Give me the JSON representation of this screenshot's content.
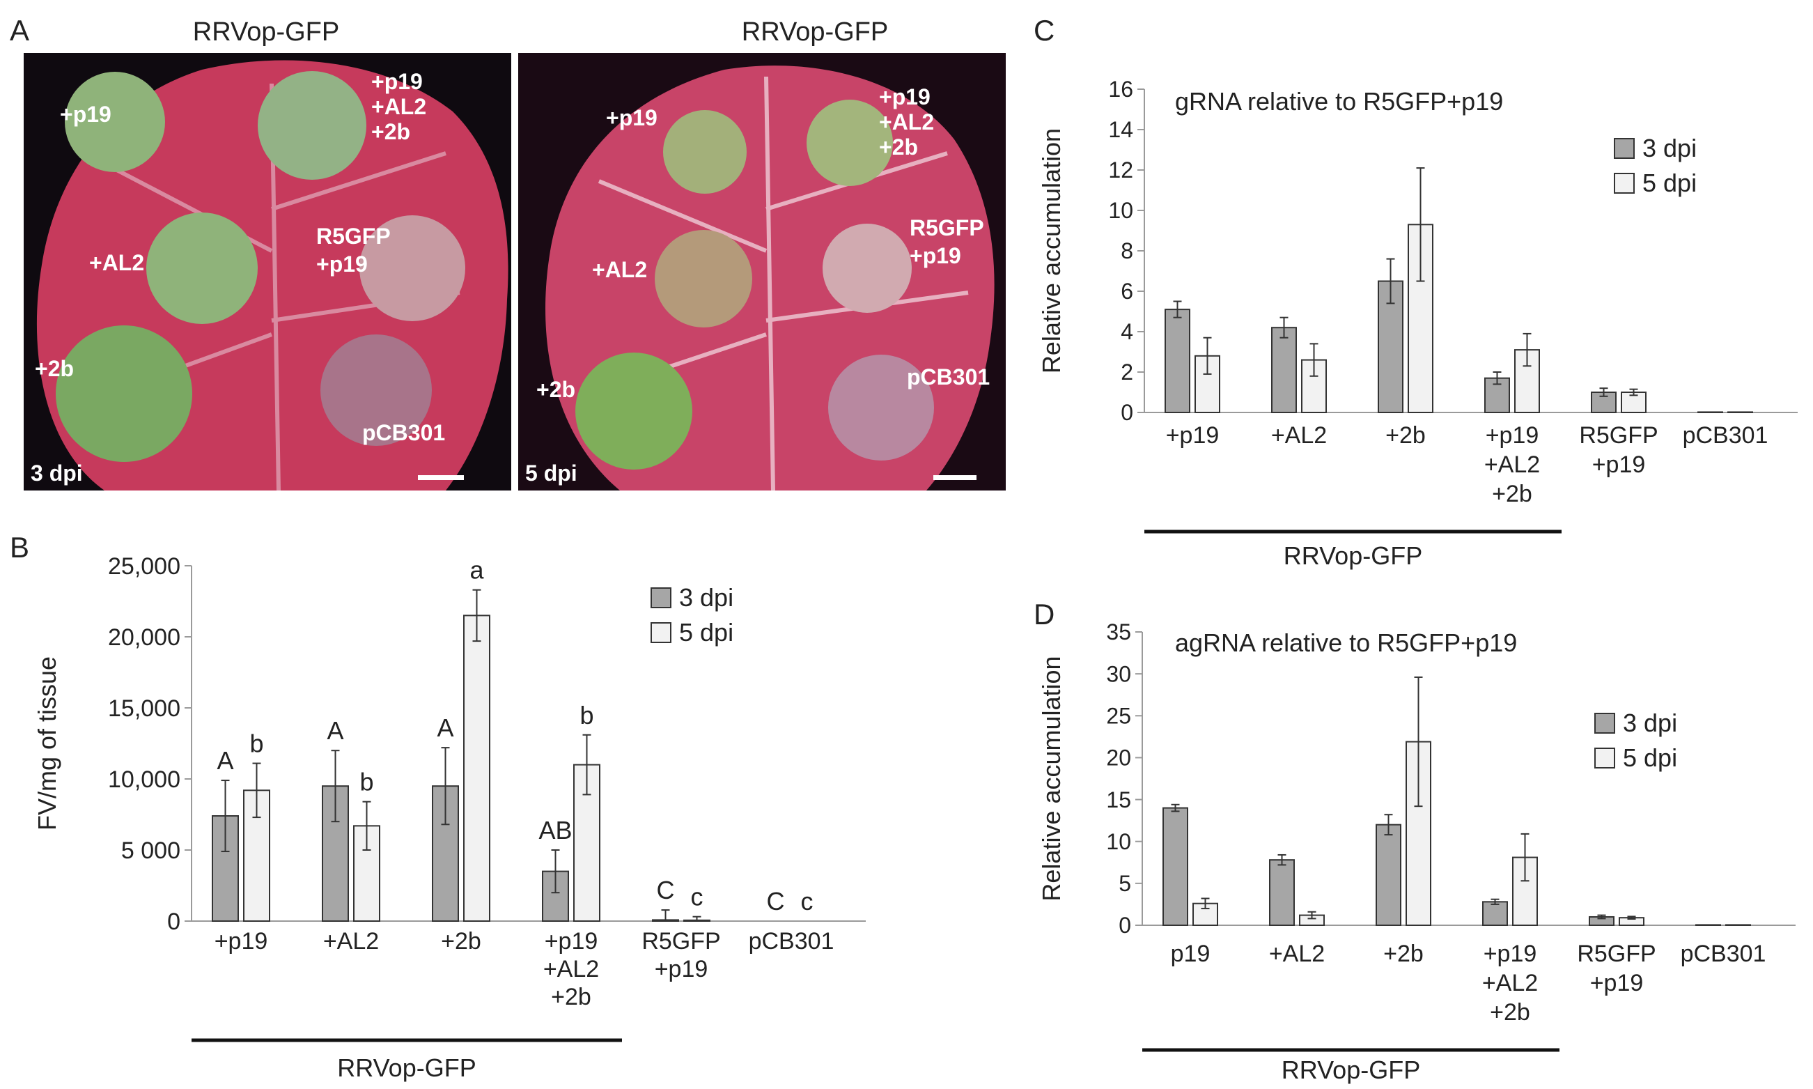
{
  "panels": {
    "a": "A",
    "b": "B",
    "c": "C",
    "d": "D"
  },
  "photos": {
    "left": {
      "title": "RRVop-GFP",
      "day": "3 dpi",
      "labels": [
        "+p19",
        "+p19\n+AL2\n+2b",
        "+AL2",
        "R5GFP\n+p19",
        "+2b",
        "pCB301"
      ]
    },
    "right": {
      "title": "RRVop-GFP",
      "day": "5 dpi",
      "labels": [
        "+p19",
        "+p19\n+AL2\n+2b",
        "+AL2",
        "R5GFP\n+p19",
        "+2b",
        "pCB301"
      ]
    }
  },
  "colors": {
    "dark_bar": "#a6a6a6",
    "light_bar": "#f2f2f2",
    "leaf": "#c83a5a",
    "background": "#0f0a10",
    "spot": "#8fb37a"
  },
  "chart_data": [
    {
      "panel": "B",
      "type": "bar",
      "categories": [
        "+p19",
        "+AL2",
        "+2b",
        "+p19\n+AL2\n+2b",
        "R5GFP\n+p19",
        "pCB301"
      ],
      "series": [
        {
          "name": "3 dpi",
          "values": [
            7400,
            9500,
            9500,
            3500,
            80,
            0
          ],
          "errors": [
            2500,
            2500,
            2700,
            1500,
            700,
            0
          ],
          "letters": [
            "A",
            "A",
            "A",
            "AB",
            "C",
            "C"
          ]
        },
        {
          "name": "5 dpi",
          "values": [
            9200,
            6700,
            21500,
            11000,
            60,
            0
          ],
          "errors": [
            1900,
            1700,
            1800,
            2100,
            250,
            0
          ],
          "letters": [
            "b",
            "b",
            "a",
            "b",
            "c",
            "c"
          ]
        }
      ],
      "title": "",
      "ylabel": "FV/mg of tissue",
      "ylim": [
        0,
        25000
      ],
      "yticks": [
        0,
        5000,
        10000,
        15000,
        20000,
        25000
      ],
      "ytick_labels": [
        "0",
        "5 000",
        "10,000",
        "15,000",
        "20,000",
        "25,000"
      ],
      "group_label": "RRVop-GFP",
      "group_span": [
        0,
        3
      ],
      "legend": "right"
    },
    {
      "panel": "C",
      "type": "bar",
      "categories": [
        "+p19",
        "+AL2",
        "+2b",
        "+p19\n+AL2\n+2b",
        "R5GFP\n+p19",
        "pCB301"
      ],
      "series": [
        {
          "name": "3 dpi",
          "values": [
            5.1,
            4.2,
            6.5,
            1.7,
            1.0,
            0.02
          ],
          "errors": [
            0.4,
            0.5,
            1.1,
            0.3,
            0.2,
            0
          ]
        },
        {
          "name": "5 dpi",
          "values": [
            2.8,
            2.6,
            9.3,
            3.1,
            1.0,
            0.02
          ],
          "errors": [
            0.9,
            0.8,
            2.8,
            0.8,
            0.15,
            0
          ]
        }
      ],
      "title": "gRNA relative to R5GFP+p19",
      "ylabel": "Relative accumulation",
      "ylim": [
        0,
        16
      ],
      "yticks": [
        0,
        2,
        4,
        6,
        8,
        10,
        12,
        14,
        16
      ],
      "ytick_labels": [
        "0",
        "2",
        "4",
        "6",
        "8",
        "10",
        "12",
        "14",
        "16"
      ],
      "group_label": "RRVop-GFP",
      "group_span": [
        0,
        3
      ],
      "legend": "right"
    },
    {
      "panel": "D",
      "type": "bar",
      "categories": [
        "p19",
        "+AL2",
        "+2b",
        "+p19\n+AL2\n+2b",
        "R5GFP\n+p19",
        "pCB301"
      ],
      "series": [
        {
          "name": "3 dpi",
          "values": [
            14.0,
            7.8,
            12.0,
            2.8,
            1.0,
            0.05
          ],
          "errors": [
            0.4,
            0.6,
            1.2,
            0.3,
            0.2,
            0
          ]
        },
        {
          "name": "5 dpi",
          "values": [
            2.6,
            1.2,
            21.9,
            8.1,
            0.9,
            0.05
          ],
          "errors": [
            0.6,
            0.4,
            7.7,
            2.8,
            0.15,
            0
          ]
        }
      ],
      "title": "agRNA relative to R5GFP+p19",
      "ylabel": "Relative accumulation",
      "ylim": [
        0,
        35
      ],
      "yticks": [
        0,
        5,
        10,
        15,
        20,
        25,
        30,
        35
      ],
      "ytick_labels": [
        "0",
        "5",
        "10",
        "15",
        "20",
        "25",
        "30",
        "35"
      ],
      "group_label": "RRVop-GFP",
      "group_span": [
        0,
        3
      ],
      "legend": "right"
    }
  ]
}
